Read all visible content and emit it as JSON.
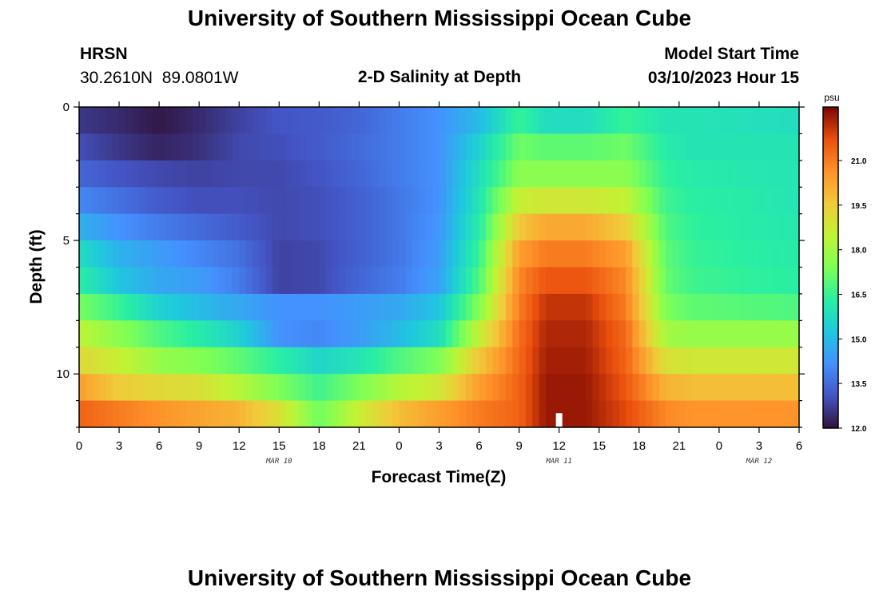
{
  "page": {
    "title_top": "University of Southern Mississippi Ocean Cube",
    "title_bottom": "University of Southern Mississippi Ocean Cube",
    "station_code": "HRSN",
    "station_coords": "30.2610N  89.0801W",
    "chart_subtitle": "2-D Salinity at Depth",
    "model_start_label": "Model Start Time",
    "model_start_value": "03/10/2023 Hour 15"
  },
  "chart_data": {
    "type": "heatmap",
    "title": "2-D Salinity at Depth",
    "xlabel": "Forecast Time(Z)",
    "ylabel": "Depth (ft)",
    "x_ticks": [
      "0",
      "3",
      "6",
      "9",
      "12",
      "15",
      "18",
      "21",
      "0",
      "3",
      "6",
      "9",
      "12",
      "15",
      "18",
      "21",
      "0",
      "3",
      "6"
    ],
    "date_labels": [
      {
        "label": "MAR 10",
        "at_hour": 15
      },
      {
        "label": "MAR 11",
        "at_hour": 36
      },
      {
        "label": "MAR 12",
        "at_hour": 51
      }
    ],
    "x_range_hours": [
      0,
      54
    ],
    "y_ticks": [
      "0",
      "5",
      "10"
    ],
    "y_tick_values": [
      0,
      5,
      10
    ],
    "ylim": [
      0,
      12
    ],
    "depth_bins": 12,
    "time_control_hours": [
      0,
      3,
      6,
      9,
      12,
      15,
      18,
      21,
      24,
      27,
      30,
      33,
      35,
      38,
      41,
      44,
      46,
      50,
      54
    ],
    "salinity_rows_psu": [
      [
        12.6,
        12.4,
        12.1,
        12.4,
        12.8,
        13.1,
        13.2,
        13.4,
        13.8,
        14.2,
        15.0,
        16.5,
        15.8,
        15.8,
        16.5,
        16.0,
        16.0,
        15.9,
        15.8
      ],
      [
        13.0,
        12.6,
        12.3,
        12.5,
        12.9,
        13.0,
        13.2,
        13.5,
        13.8,
        14.2,
        15.5,
        17.2,
        17.0,
        17.0,
        17.2,
        16.2,
        16.0,
        16.0,
        16.0
      ],
      [
        13.4,
        13.1,
        12.9,
        12.8,
        12.9,
        12.9,
        13.1,
        13.4,
        13.8,
        14.2,
        15.8,
        17.6,
        17.6,
        17.6,
        17.6,
        16.4,
        16.2,
        16.1,
        16.0
      ],
      [
        14.0,
        13.6,
        13.2,
        13.0,
        13.0,
        12.9,
        13.0,
        13.3,
        13.7,
        14.2,
        16.0,
        18.6,
        18.8,
        18.8,
        18.5,
        16.6,
        16.3,
        16.2,
        16.0
      ],
      [
        14.8,
        14.2,
        13.8,
        13.5,
        13.2,
        12.9,
        13.0,
        13.3,
        13.7,
        14.3,
        16.2,
        19.6,
        20.2,
        20.2,
        19.5,
        16.8,
        16.4,
        16.2,
        16.1
      ],
      [
        15.8,
        14.8,
        14.4,
        14.0,
        13.6,
        12.8,
        12.9,
        13.3,
        13.7,
        14.4,
        16.5,
        20.4,
        21.0,
        21.0,
        20.4,
        17.0,
        16.5,
        16.3,
        16.2
      ],
      [
        16.3,
        15.2,
        14.6,
        14.4,
        13.8,
        12.8,
        12.9,
        13.4,
        13.8,
        14.5,
        16.8,
        20.8,
        21.6,
        21.6,
        20.8,
        17.1,
        16.6,
        16.4,
        16.3
      ],
      [
        17.3,
        16.5,
        15.5,
        15.0,
        14.6,
        14.2,
        14.2,
        14.4,
        14.6,
        15.2,
        17.5,
        21.0,
        22.1,
        22.1,
        21.0,
        17.4,
        17.0,
        16.9,
        16.8
      ],
      [
        18.4,
        17.6,
        16.8,
        16.2,
        15.5,
        14.2,
        14.0,
        14.4,
        15.0,
        15.8,
        18.5,
        21.2,
        22.3,
        22.3,
        21.3,
        18.0,
        17.8,
        17.8,
        17.8
      ],
      [
        19.2,
        18.6,
        17.8,
        17.5,
        17.0,
        16.3,
        15.6,
        16.0,
        16.8,
        17.4,
        19.6,
        21.3,
        22.4,
        22.4,
        21.4,
        19.0,
        18.8,
        18.8,
        18.8
      ],
      [
        20.4,
        19.5,
        19.2,
        19.0,
        18.3,
        17.4,
        16.6,
        17.4,
        18.3,
        18.8,
        20.4,
        21.4,
        22.5,
        22.5,
        21.6,
        20.0,
        19.8,
        19.8,
        19.8
      ],
      [
        21.4,
        21.0,
        20.6,
        20.3,
        20.0,
        19.0,
        17.2,
        18.6,
        19.8,
        20.4,
        21.0,
        21.4,
        22.5,
        22.5,
        21.8,
        20.8,
        20.6,
        20.6,
        20.6
      ]
    ],
    "marker": {
      "type": "white-bar",
      "hour": 36,
      "depth": 11.5
    },
    "colorbar": {
      "label": "psu",
      "min": 12.0,
      "max": 22.8,
      "tick_labels": [
        "21.0",
        "19.5",
        "18.0",
        "16.5",
        "15.0",
        "13.5",
        "12.0"
      ],
      "tick_values": [
        21.0,
        19.5,
        18.0,
        16.5,
        15.0,
        13.5,
        12.0
      ]
    }
  }
}
